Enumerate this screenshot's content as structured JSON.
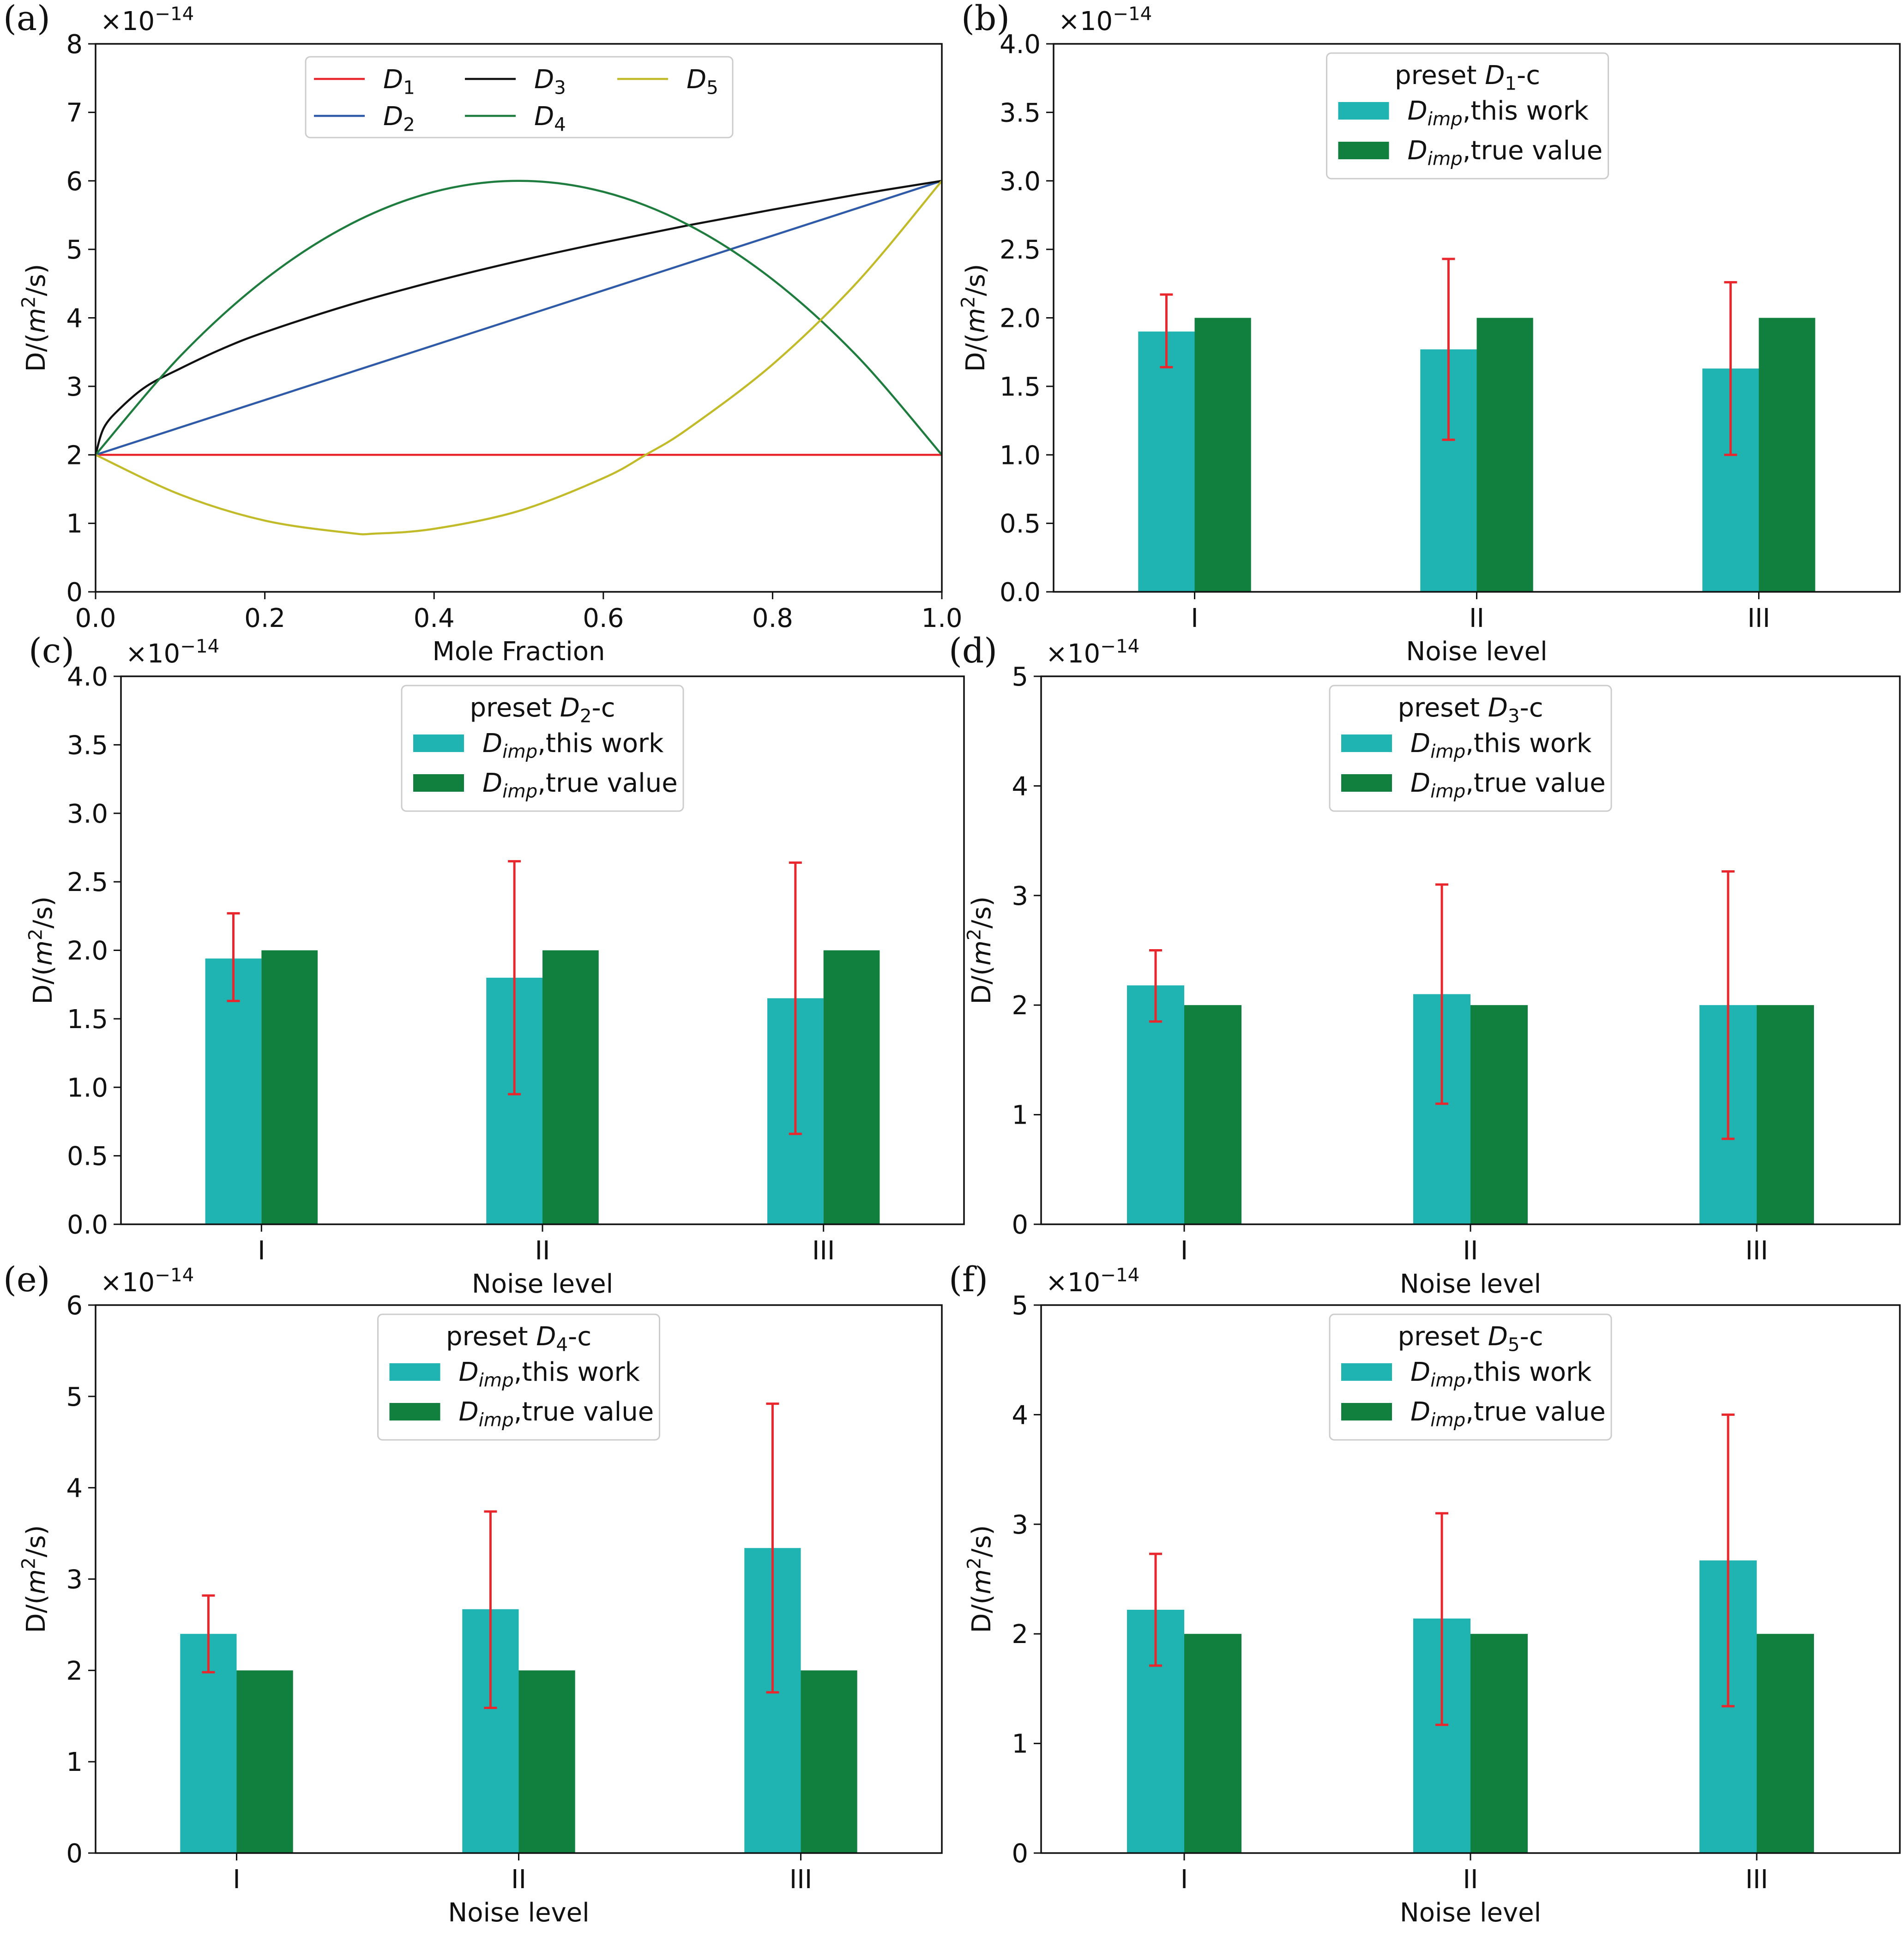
{
  "colors": {
    "d1": "#e8262b",
    "d2": "#2e5aa7",
    "d3": "#111111",
    "d4": "#1e7d3e",
    "d5": "#c2bb29",
    "this_work": "#1fb3b2",
    "true_value": "#117f3e",
    "error_bar": "#e8262b"
  },
  "chart_data": [
    {
      "panel": "(a)",
      "type": "line",
      "exponent": "×10",
      "exponent_power": "−14",
      "xlabel": "Mole Fraction",
      "ylabel_prefix": "D/(",
      "ylabel_unit": "m",
      "ylabel_sup": "2",
      "ylabel_suffix": "/s)",
      "xlim": [
        0,
        1
      ],
      "ylim": [
        0,
        8
      ],
      "xticks": [
        "0.0",
        "0.2",
        "0.4",
        "0.6",
        "0.8",
        "1.0"
      ],
      "yticks": [
        "0",
        "1",
        "2",
        "3",
        "4",
        "5",
        "6",
        "7",
        "8"
      ],
      "legend_position": "top-center",
      "series": [
        {
          "name": "D",
          "sub": "1",
          "color_key": "d1",
          "x": [
            0,
            1
          ],
          "y": [
            2,
            2
          ]
        },
        {
          "name": "D",
          "sub": "2",
          "color_key": "d2",
          "x": [
            0,
            1
          ],
          "y": [
            2,
            6
          ]
        },
        {
          "name": "D",
          "sub": "3",
          "color_key": "d3",
          "x": [
            0,
            0.01,
            0.03,
            0.06,
            0.1,
            0.15,
            0.2,
            0.3,
            0.4,
            0.5,
            0.6,
            0.7,
            0.8,
            0.9,
            1.0
          ],
          "y": [
            2,
            2.4,
            2.69,
            3.0,
            3.26,
            3.55,
            3.79,
            4.19,
            4.53,
            4.83,
            5.1,
            5.35,
            5.58,
            5.8,
            6.0
          ]
        },
        {
          "name": "D",
          "sub": "4",
          "color_key": "d4",
          "x": [
            0,
            0.1,
            0.2,
            0.3,
            0.4,
            0.5,
            0.6,
            0.7,
            0.8,
            0.9,
            1.0
          ],
          "y": [
            2,
            3.44,
            4.56,
            5.36,
            5.84,
            6.0,
            5.84,
            5.36,
            4.56,
            3.44,
            2.0
          ]
        },
        {
          "name": "D",
          "sub": "5",
          "color_key": "d5",
          "x": [
            0,
            0.1,
            0.2,
            0.3,
            0.33,
            0.4,
            0.5,
            0.6,
            0.65,
            0.7,
            0.8,
            0.9,
            1.0
          ],
          "y": [
            2,
            1.42,
            1.04,
            0.86,
            0.85,
            0.92,
            1.18,
            1.66,
            2.0,
            2.38,
            3.32,
            4.52,
            6.0
          ]
        }
      ]
    },
    {
      "panel": "(b)",
      "type": "bar",
      "exponent": "×10",
      "exponent_power": "−14",
      "xlabel": "Noise level",
      "ylabel_prefix": "D/(",
      "ylabel_unit": "m",
      "ylabel_sup": "2",
      "ylabel_suffix": "/s)",
      "ylim": [
        0,
        4
      ],
      "yticks": [
        "0.0",
        "0.5",
        "1.0",
        "1.5",
        "2.0",
        "2.5",
        "3.0",
        "3.5",
        "4.0"
      ],
      "categories": [
        "I",
        "II",
        "III"
      ],
      "legend_position": "top-center",
      "legend_title": {
        "prefix": "preset ",
        "symbol": "D",
        "sub": "1",
        "suffix": "-c"
      },
      "series": [
        {
          "name": "D",
          "sub": "imp",
          "label": ",this work",
          "color_key": "this_work",
          "values": [
            1.9,
            1.77,
            1.63
          ],
          "err_low": [
            1.64,
            1.11,
            1.0
          ],
          "err_high": [
            2.17,
            2.43,
            2.26
          ]
        },
        {
          "name": "D",
          "sub": "imp",
          "label": ",true value",
          "color_key": "true_value",
          "values": [
            2.0,
            2.0,
            2.0
          ]
        }
      ]
    },
    {
      "panel": "(c)",
      "type": "bar",
      "exponent": "×10",
      "exponent_power": "−14",
      "xlabel": "Noise level",
      "ylabel_prefix": "D/(",
      "ylabel_unit": "m",
      "ylabel_sup": "2",
      "ylabel_suffix": "/s)",
      "ylim": [
        0,
        4
      ],
      "yticks": [
        "0.0",
        "0.5",
        "1.0",
        "1.5",
        "2.0",
        "2.5",
        "3.0",
        "3.5",
        "4.0"
      ],
      "categories": [
        "I",
        "II",
        "III"
      ],
      "legend_position": "top-center",
      "legend_title": {
        "prefix": "preset ",
        "symbol": "D",
        "sub": "2",
        "suffix": "-c"
      },
      "series": [
        {
          "name": "D",
          "sub": "imp",
          "label": ",this work",
          "color_key": "this_work",
          "values": [
            1.94,
            1.8,
            1.65
          ],
          "err_low": [
            1.63,
            0.95,
            0.66
          ],
          "err_high": [
            2.27,
            2.65,
            2.64
          ]
        },
        {
          "name": "D",
          "sub": "imp",
          "label": ",true value",
          "color_key": "true_value",
          "values": [
            2.0,
            2.0,
            2.0
          ]
        }
      ]
    },
    {
      "panel": "(d)",
      "type": "bar",
      "exponent": "×10",
      "exponent_power": "−14",
      "xlabel": "Noise level",
      "ylabel_prefix": "D/(",
      "ylabel_unit": "m",
      "ylabel_sup": "2",
      "ylabel_suffix": "/s)",
      "ylim": [
        0,
        5
      ],
      "yticks": [
        "0",
        "1",
        "2",
        "3",
        "4",
        "5"
      ],
      "categories": [
        "I",
        "II",
        "III"
      ],
      "legend_position": "top-center",
      "legend_title": {
        "prefix": "preset ",
        "symbol": "D",
        "sub": "3",
        "suffix": "-c"
      },
      "series": [
        {
          "name": "D",
          "sub": "imp",
          "label": ",this work",
          "color_key": "this_work",
          "values": [
            2.18,
            2.1,
            2.0
          ],
          "err_low": [
            1.85,
            1.1,
            0.78
          ],
          "err_high": [
            2.5,
            3.1,
            3.22
          ]
        },
        {
          "name": "D",
          "sub": "imp",
          "label": ",true value",
          "color_key": "true_value",
          "values": [
            2.0,
            2.0,
            2.0
          ]
        }
      ]
    },
    {
      "panel": "(e)",
      "type": "bar",
      "exponent": "×10",
      "exponent_power": "−14",
      "xlabel": "Noise level",
      "ylabel_prefix": "D/(",
      "ylabel_unit": "m",
      "ylabel_sup": "2",
      "ylabel_suffix": "/s)",
      "ylim": [
        0,
        6
      ],
      "yticks": [
        "0",
        "1",
        "2",
        "3",
        "4",
        "5",
        "6"
      ],
      "categories": [
        "I",
        "II",
        "III"
      ],
      "legend_position": "top-center",
      "legend_title": {
        "prefix": "preset ",
        "symbol": "D",
        "sub": "4",
        "suffix": "-c"
      },
      "series": [
        {
          "name": "D",
          "sub": "imp",
          "label": ",this work",
          "color_key": "this_work",
          "values": [
            2.4,
            2.67,
            3.34
          ],
          "err_low": [
            1.98,
            1.59,
            1.76
          ],
          "err_high": [
            2.82,
            3.74,
            4.92
          ]
        },
        {
          "name": "D",
          "sub": "imp",
          "label": ",true value",
          "color_key": "true_value",
          "values": [
            2.0,
            2.0,
            2.0
          ]
        }
      ]
    },
    {
      "panel": "(f)",
      "type": "bar",
      "exponent": "×10",
      "exponent_power": "−14",
      "xlabel": "Noise level",
      "ylabel_prefix": "D/(",
      "ylabel_unit": "m",
      "ylabel_sup": "2",
      "ylabel_suffix": "/s)",
      "ylim": [
        0,
        5
      ],
      "yticks": [
        "0",
        "1",
        "2",
        "3",
        "4",
        "5"
      ],
      "categories": [
        "I",
        "II",
        "III"
      ],
      "legend_position": "top-center",
      "legend_title": {
        "prefix": "preset ",
        "symbol": "D",
        "sub": "5",
        "suffix": "-c"
      },
      "series": [
        {
          "name": "D",
          "sub": "imp",
          "label": ",this work",
          "color_key": "this_work",
          "values": [
            2.22,
            2.14,
            2.67
          ],
          "err_low": [
            1.71,
            1.17,
            1.34
          ],
          "err_high": [
            2.73,
            3.1,
            4.0
          ]
        },
        {
          "name": "D",
          "sub": "imp",
          "label": ",true value",
          "color_key": "true_value",
          "values": [
            2.0,
            2.0,
            2.0
          ]
        }
      ]
    }
  ]
}
